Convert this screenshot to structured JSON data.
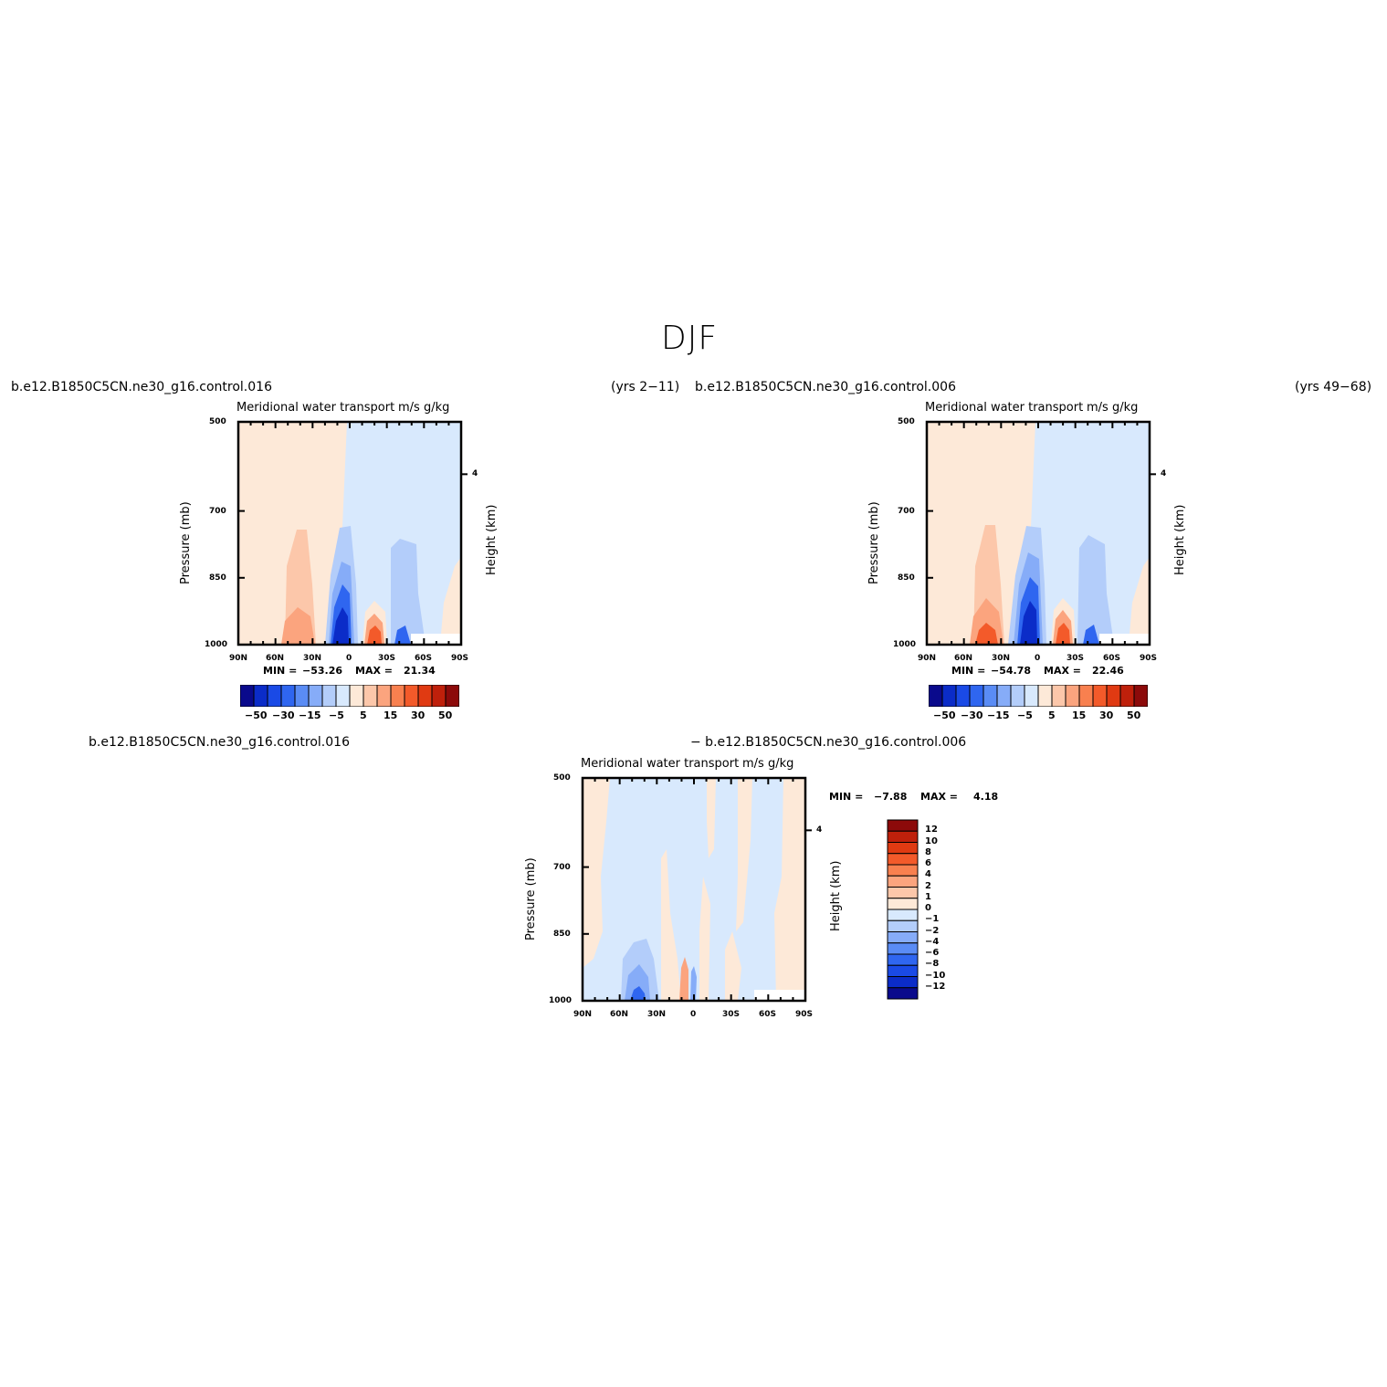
{
  "figure": {
    "title": "DJF",
    "left_case": "b.e12.B1850C5CN.ne30_g16.control.016",
    "left_years": "(yrs 2−11)",
    "right_case": "b.e12.B1850C5CN.ne30_g16.control.006",
    "right_years": "(yrs 49−68)",
    "diff_case_a": "b.e12.B1850C5CN.ne30_g16.control.016",
    "diff_case_b": "− b.e12.B1850C5CN.ne30_g16.control.006"
  },
  "chart_data": [
    {
      "type": "heatmap",
      "title": "Meridional water transport",
      "units": "m/s g/kg",
      "ylabel": "Pressure (mb)",
      "y2label": "Height (km)",
      "x_ticks": [
        "90N",
        "60N",
        "30N",
        "0",
        "30S",
        "60S",
        "90S"
      ],
      "y_ticks": [
        "500",
        "700",
        "850",
        "1000"
      ],
      "y2_ticks": [
        "4"
      ],
      "min_label": "MIN =",
      "min_value": "−53.26",
      "max_label": "MAX =",
      "max_value": "21.34",
      "colorbar_labels": [
        "−50",
        "−30",
        "−15",
        "−5",
        "5",
        "15",
        "30",
        "50"
      ],
      "colors": [
        "#0a0a8c",
        "#0b2cc8",
        "#1a4ae6",
        "#2f66f0",
        "#5a8cf5",
        "#86acf8",
        "#b3cdfa",
        "#d8e9fd",
        "#fde9d8",
        "#fcc7aa",
        "#fba47e",
        "#f8804f",
        "#f35a2a",
        "#e03a12",
        "#bf200b",
        "#8c0a0a"
      ]
    },
    {
      "type": "heatmap",
      "title": "Meridional water transport",
      "units": "m/s g/kg",
      "ylabel": "Pressure (mb)",
      "y2label": "Height (km)",
      "x_ticks": [
        "90N",
        "60N",
        "30N",
        "0",
        "30S",
        "60S",
        "90S"
      ],
      "y_ticks": [
        "500",
        "700",
        "850",
        "1000"
      ],
      "y2_ticks": [
        "4"
      ],
      "min_label": "MIN =",
      "min_value": "−54.78",
      "max_label": "MAX =",
      "max_value": "22.46",
      "colorbar_labels": [
        "−50",
        "−30",
        "−15",
        "−5",
        "5",
        "15",
        "30",
        "50"
      ],
      "colors": [
        "#0a0a8c",
        "#0b2cc8",
        "#1a4ae6",
        "#2f66f0",
        "#5a8cf5",
        "#86acf8",
        "#b3cdfa",
        "#d8e9fd",
        "#fde9d8",
        "#fcc7aa",
        "#fba47e",
        "#f8804f",
        "#f35a2a",
        "#e03a12",
        "#bf200b",
        "#8c0a0a"
      ]
    },
    {
      "type": "heatmap",
      "title": "Meridional water transport",
      "units": "m/s g/kg",
      "ylabel": "Pressure (mb)",
      "y2label": "Height (km)",
      "x_ticks": [
        "90N",
        "60N",
        "30N",
        "0",
        "30S",
        "60S",
        "90S"
      ],
      "y_ticks": [
        "500",
        "700",
        "850",
        "1000"
      ],
      "y2_ticks": [
        "4"
      ],
      "min_label": "MIN =",
      "min_value": "−7.88",
      "max_label": "MAX =",
      "max_value": "4.18",
      "colorbar_labels": [
        "12",
        "10",
        "8",
        "6",
        "4",
        "2",
        "1",
        "0",
        "−1",
        "−2",
        "−4",
        "−6",
        "−8",
        "−10",
        "−12"
      ],
      "colors": [
        "#8c0a0a",
        "#bf200b",
        "#e03a12",
        "#f35a2a",
        "#f8804f",
        "#fba47e",
        "#fcc7aa",
        "#fde9d8",
        "#d8e9fd",
        "#b3cdfa",
        "#86acf8",
        "#5a8cf5",
        "#2f66f0",
        "#1a4ae6",
        "#0b2cc8",
        "#0a0a8c"
      ]
    }
  ]
}
